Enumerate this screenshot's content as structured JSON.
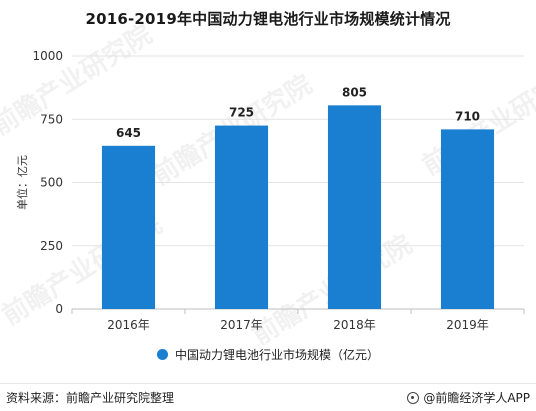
{
  "chart_data": {
    "type": "bar",
    "title": "2016-2019年中国动力锂电池行业市场规模统计情况",
    "categories": [
      "2016年",
      "2017年",
      "2018年",
      "2019年"
    ],
    "series": [
      {
        "name": "中国动力锂电池行业市场规模（亿元）",
        "values": [
          645,
          725,
          805,
          710
        ]
      }
    ],
    "ylabel": "单位：亿元",
    "xlabel": "",
    "ylim": [
      0,
      1000
    ],
    "yticks": [
      0,
      250,
      500,
      750,
      1000
    ],
    "grid": true,
    "legend_position": "bottom",
    "bar_color": "#1a7fd0"
  },
  "watermark": "前瞻产业研究院",
  "footer": {
    "source": "资料来源：前瞻产业研究院整理",
    "credit": "@前瞻经济学人APP"
  }
}
